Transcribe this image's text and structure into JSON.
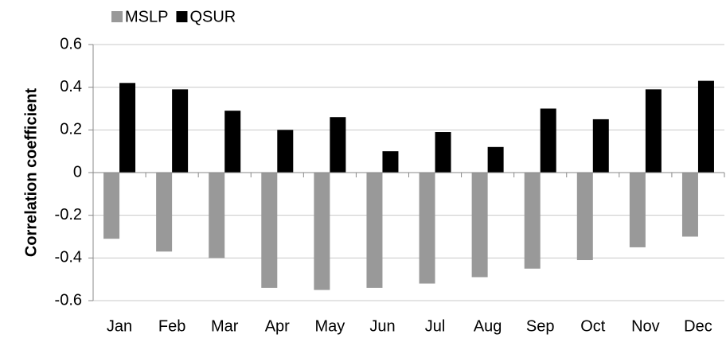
{
  "chart_data": {
    "type": "bar",
    "y_label": "Correlation coefficient",
    "categories": [
      "Jan",
      "Feb",
      "Mar",
      "Apr",
      "May",
      "Jun",
      "Jul",
      "Aug",
      "Sep",
      "Oct",
      "Nov",
      "Dec"
    ],
    "series": [
      {
        "name": "MSLP",
        "color": "#999999",
        "values": [
          -0.31,
          -0.37,
          -0.4,
          -0.54,
          -0.55,
          -0.54,
          -0.52,
          -0.49,
          -0.45,
          -0.41,
          -0.35,
          -0.3
        ]
      },
      {
        "name": "QSUR",
        "color": "#000000",
        "values": [
          0.42,
          0.39,
          0.29,
          0.2,
          0.26,
          0.1,
          0.19,
          0.12,
          0.3,
          0.25,
          0.39,
          0.43
        ]
      }
    ],
    "ylim": [
      -0.6,
      0.6
    ],
    "yticks": [
      -0.6,
      -0.4,
      -0.2,
      0,
      0.2,
      0.4,
      0.6
    ],
    "grid": true
  }
}
